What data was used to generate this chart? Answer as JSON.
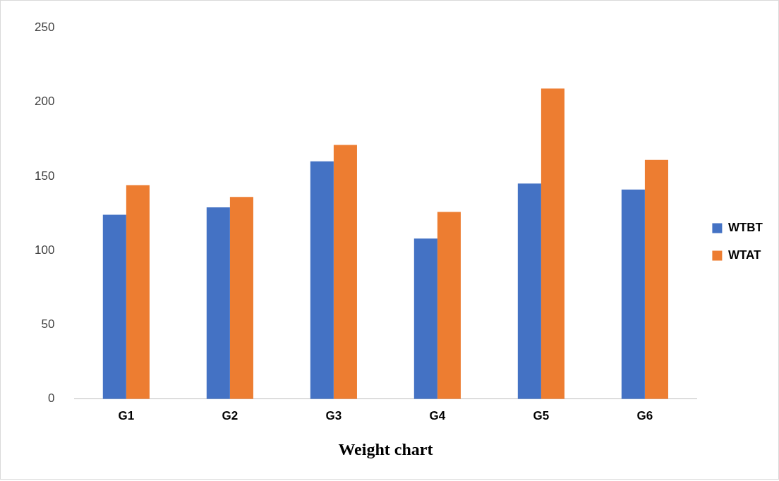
{
  "chart_data": {
    "type": "bar",
    "xlabel": "Weight chart",
    "categories": [
      "G1",
      "G2",
      "G3",
      "G4",
      "G5",
      "G6"
    ],
    "series": [
      {
        "name": "WTBT",
        "color": "#4472c4",
        "values": [
          124,
          129,
          160,
          108,
          145,
          141
        ]
      },
      {
        "name": "WTAT",
        "color": "#ed7d31",
        "values": [
          144,
          136,
          171,
          126,
          209,
          161
        ]
      }
    ],
    "ylim": [
      0,
      250
    ],
    "yticks": [
      0,
      50,
      100,
      150,
      200,
      250
    ],
    "grid": false,
    "legend": "right"
  }
}
